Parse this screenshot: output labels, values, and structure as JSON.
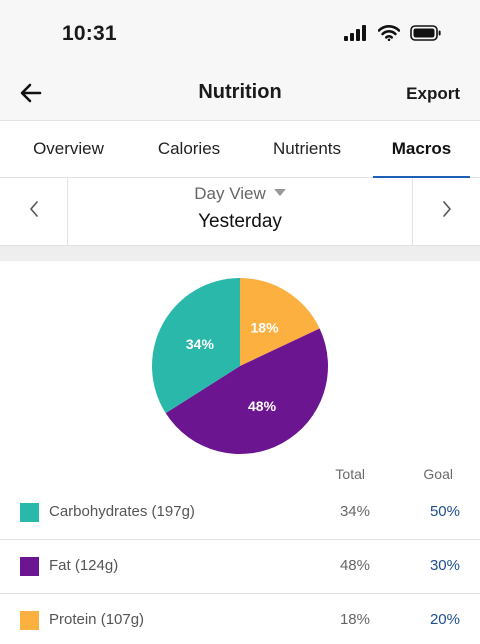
{
  "status": {
    "time": "10:31"
  },
  "header": {
    "title": "Nutrition",
    "export_label": "Export"
  },
  "tabs": [
    {
      "label": "Overview",
      "active": false
    },
    {
      "label": "Calories",
      "active": false
    },
    {
      "label": "Nutrients",
      "active": false
    },
    {
      "label": "Macros",
      "active": true
    }
  ],
  "date_nav": {
    "view_label": "Day View",
    "date_label": "Yesterday"
  },
  "chart_data": {
    "type": "pie",
    "slices": [
      {
        "label": "Protein",
        "value": 18,
        "display": "18%",
        "color": "#fbb040"
      },
      {
        "label": "Fat",
        "value": 48,
        "display": "48%",
        "color": "#6c1590"
      },
      {
        "label": "Carbohydrates",
        "value": 34,
        "display": "34%",
        "color": "#2ab8ab"
      }
    ]
  },
  "table": {
    "total_header": "Total",
    "goal_header": "Goal",
    "rows": [
      {
        "name": "Carbohydrates (197g)",
        "total": "34%",
        "goal": "50%",
        "color": "#2ab8ab"
      },
      {
        "name": "Fat (124g)",
        "total": "48%",
        "goal": "30%",
        "color": "#6c1590"
      },
      {
        "name": "Protein (107g)",
        "total": "18%",
        "goal": "20%",
        "color": "#fbb040"
      }
    ]
  },
  "colors": {
    "accent": "#1e5fb5",
    "goal_text": "#1e4f8f"
  }
}
